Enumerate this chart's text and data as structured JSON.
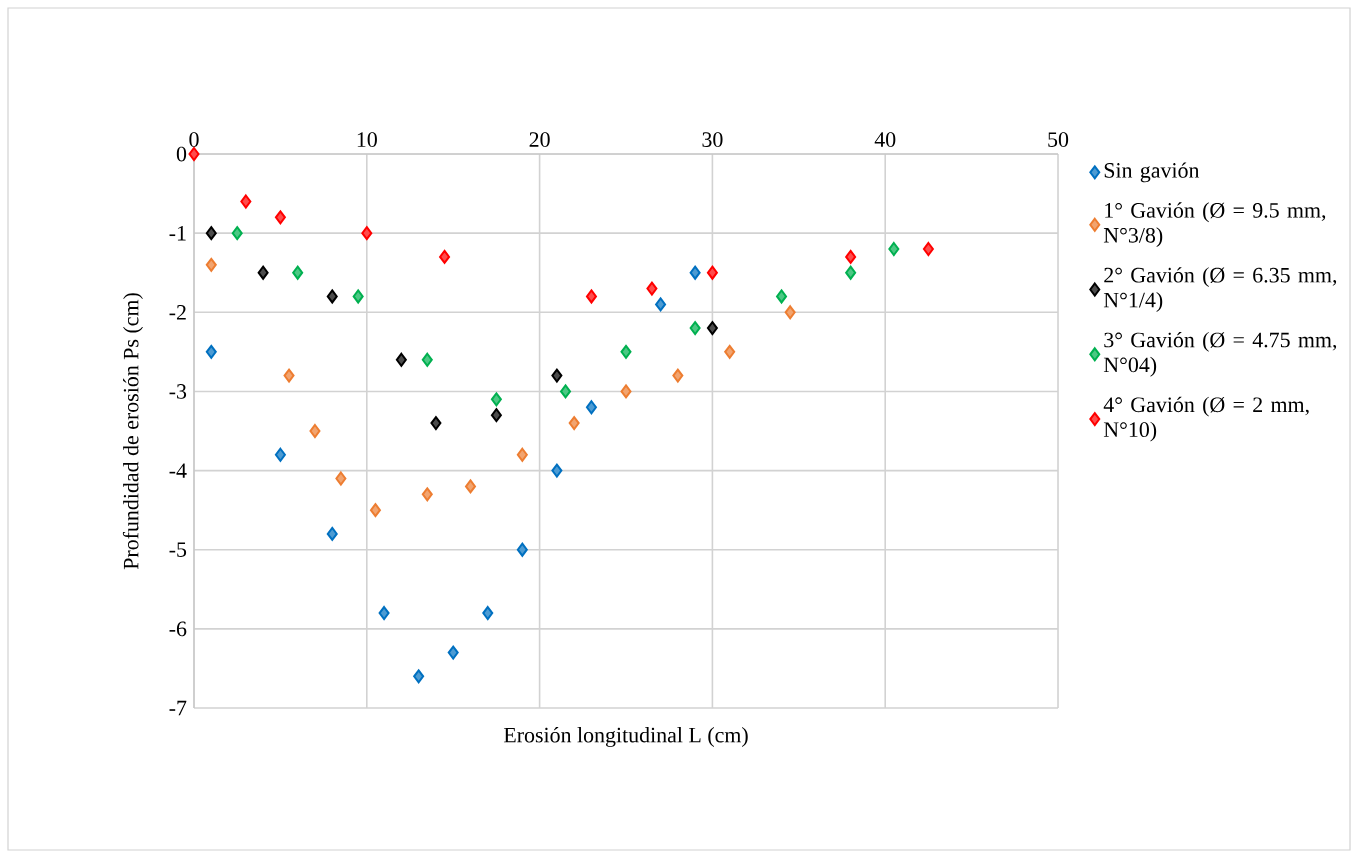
{
  "chart_data": {
    "type": "scatter",
    "xlabel": "Erosión longitudinal L (cm)",
    "ylabel": "Profundidad de erosión Ps (cm)",
    "xlim": [
      0,
      50
    ],
    "xticks": [
      0,
      10,
      20,
      30,
      40,
      50
    ],
    "ylim": [
      -7,
      0
    ],
    "yticks": [
      -7,
      -6,
      -5,
      -4,
      -3,
      -2,
      -1,
      0
    ],
    "grid": true,
    "legend": "right",
    "marker": "diamond",
    "series": [
      {
        "name": "Sin gavión",
        "color": "#0070c0",
        "x": [
          1,
          5,
          8,
          11,
          13,
          15,
          17,
          19,
          21,
          23,
          27,
          29
        ],
        "values": [
          -2.5,
          -3.8,
          -4.8,
          -5.8,
          -6.6,
          -6.3,
          -5.8,
          -5,
          -4,
          -3.2,
          -1.9,
          -1.5
        ]
      },
      {
        "name": "1° Gavión (Ø = 9.5 mm, N°3/8)",
        "color": "#ed7d31",
        "x": [
          1,
          5.5,
          7,
          8.5,
          10.5,
          13.5,
          16,
          19,
          22,
          25,
          28,
          31,
          34.5
        ],
        "values": [
          -1.4,
          -2.8,
          -3.5,
          -4.1,
          -4.5,
          -4.3,
          -4.2,
          -3.8,
          -3.4,
          -3,
          -2.8,
          -2.5,
          -2
        ]
      },
      {
        "name": "2° Gavión (Ø = 6.35 mm, N°1/4)",
        "color": "#000000",
        "x": [
          1,
          4,
          8,
          12,
          14,
          17.5,
          21,
          30
        ],
        "values": [
          -1,
          -1.5,
          -1.8,
          -2.6,
          -3.4,
          -3.3,
          -2.8,
          -2.2
        ]
      },
      {
        "name": "3° Gavión (Ø = 4.75 mm, N°04)",
        "color": "#00b050",
        "x": [
          2.5,
          6,
          9.5,
          13.5,
          17.5,
          21.5,
          25,
          29,
          34,
          38,
          40.5
        ],
        "values": [
          -1,
          -1.5,
          -1.8,
          -2.6,
          -3.1,
          -3,
          -2.5,
          -2.2,
          -1.8,
          -1.5,
          -1.2
        ]
      },
      {
        "name": "4° Gavión (Ø = 2 mm, N°10)",
        "color": "#ff0000",
        "x": [
          0,
          3,
          5,
          10,
          14.5,
          23,
          26.5,
          30,
          38,
          42.5
        ],
        "values": [
          0,
          -0.6,
          -0.8,
          -1,
          -1.3,
          -1.8,
          -1.7,
          -1.5,
          -1.3,
          -1.2
        ]
      }
    ]
  }
}
